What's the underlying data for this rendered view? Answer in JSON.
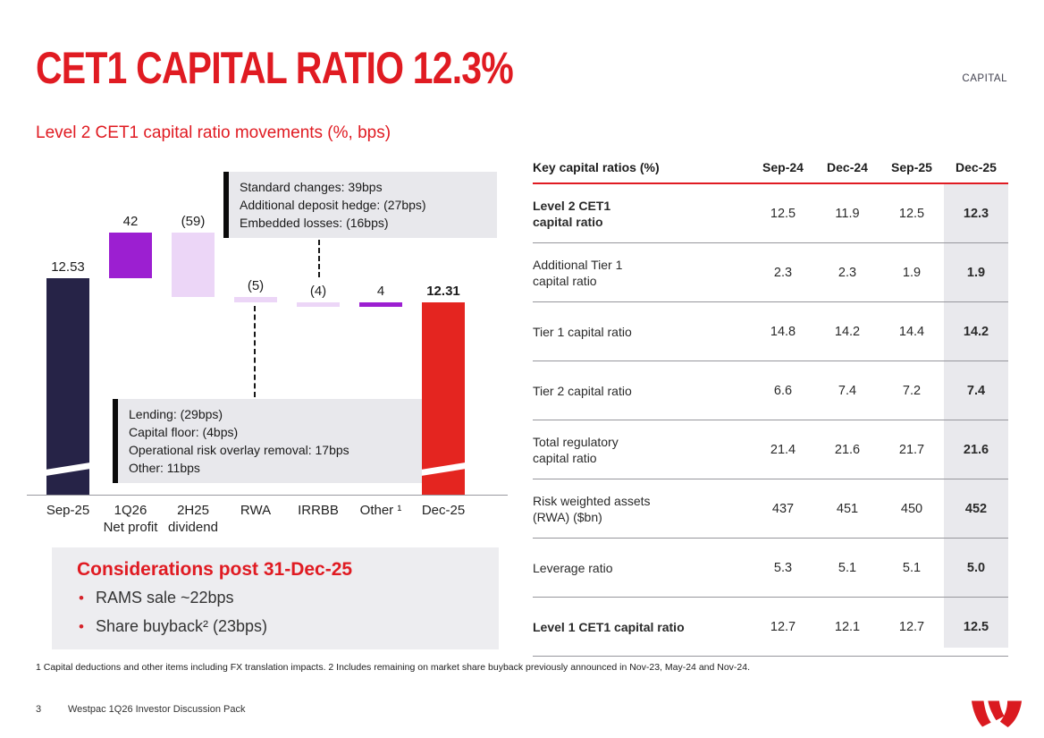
{
  "page": {
    "title": "CET1 CAPITAL RATIO 12.3%",
    "section_tag": "CAPITAL",
    "chart_heading": "Level 2 CET1 capital ratio movements (%, bps)",
    "footnote": "1 Capital deductions and other items including FX translation impacts. 2 Includes remaining on market share buyback previously announced in Nov-23, May-24 and Nov-24.",
    "page_number": "3",
    "footer_label": "Westpac 1Q26 Investor Discussion Pack"
  },
  "considerations": {
    "title": "Considerations post 31-Dec-25",
    "bullets": [
      "RAMS sale ~22bps",
      "Share buyback² (23bps)"
    ]
  },
  "colors": {
    "brand_red": "#e01b22",
    "navy": "#262347",
    "purple": "#9c1fd1",
    "lavender": "#ecd6f7",
    "bar_red": "#e42520",
    "box_gray": "#e8e8ec",
    "shaded_column": "#e9e9ed"
  },
  "chart_data": [
    {
      "type": "waterfall",
      "title": "Level 2 CET1 capital ratio movements (%, bps)",
      "unit": "%, bps",
      "bars": [
        {
          "category": "Sep-25",
          "label": "12.53",
          "kind": "total",
          "value_pct": 12.53,
          "color_key": "navy",
          "label_bold": false
        },
        {
          "category": "1Q26\nNet profit",
          "label": "42",
          "kind": "delta",
          "delta_bps": 42,
          "color_key": "purple",
          "label_bold": false
        },
        {
          "category": "2H25\ndividend",
          "label": "(59)",
          "kind": "delta",
          "delta_bps": -59,
          "color_key": "lavender",
          "label_bold": false
        },
        {
          "category": "RWA",
          "label": "(5)",
          "kind": "delta",
          "delta_bps": -5,
          "color_key": "lavender",
          "label_bold": false
        },
        {
          "category": "IRRBB",
          "label": "(4)",
          "kind": "delta",
          "delta_bps": -4,
          "color_key": "lavender",
          "label_bold": false
        },
        {
          "category": "Other ¹",
          "label": "4",
          "kind": "delta",
          "delta_bps": 4,
          "color_key": "purple",
          "label_bold": false
        },
        {
          "category": "Dec-25",
          "label": "12.31",
          "kind": "total",
          "value_pct": 12.31,
          "color_key": "bar_red",
          "label_bold": true
        }
      ],
      "annotations": [
        {
          "target": "IRRBB",
          "lines": [
            "Standard changes: 39bps",
            "Additional deposit hedge: (27bps)",
            "Embedded losses: (16bps)"
          ]
        },
        {
          "target": "RWA",
          "lines": [
            "Lending: (29bps)",
            "Capital floor: (4bps)",
            "Operational risk overlay removal: 17bps",
            "Other: 11bps"
          ]
        }
      ]
    },
    {
      "type": "table",
      "title": "Key capital ratios (%)",
      "columns": [
        "Sep-24",
        "Dec-24",
        "Sep-25",
        "Dec-25"
      ],
      "highlight_column": "Dec-25",
      "rows": [
        {
          "label": "Level 2 CET1\ncapital ratio",
          "bold": true,
          "values": [
            "12.5",
            "11.9",
            "12.5",
            "12.3"
          ]
        },
        {
          "label": "Additional Tier 1\ncapital ratio",
          "bold": false,
          "values": [
            "2.3",
            "2.3",
            "1.9",
            "1.9"
          ]
        },
        {
          "label": "Tier 1 capital ratio",
          "bold": false,
          "values": [
            "14.8",
            "14.2",
            "14.4",
            "14.2"
          ]
        },
        {
          "label": "Tier 2 capital ratio",
          "bold": false,
          "values": [
            "6.6",
            "7.4",
            "7.2",
            "7.4"
          ]
        },
        {
          "label": "Total regulatory\ncapital ratio",
          "bold": false,
          "values": [
            "21.4",
            "21.6",
            "21.7",
            "21.6"
          ]
        },
        {
          "label": "Risk weighted assets\n(RWA) ($bn)",
          "bold": false,
          "values": [
            "437",
            "451",
            "450",
            "452"
          ]
        },
        {
          "label": "Leverage ratio",
          "bold": false,
          "values": [
            "5.3",
            "5.1",
            "5.1",
            "5.0"
          ]
        },
        {
          "label": "Level 1 CET1 capital ratio",
          "bold": true,
          "values": [
            "12.7",
            "12.1",
            "12.7",
            "12.5"
          ]
        }
      ]
    }
  ]
}
